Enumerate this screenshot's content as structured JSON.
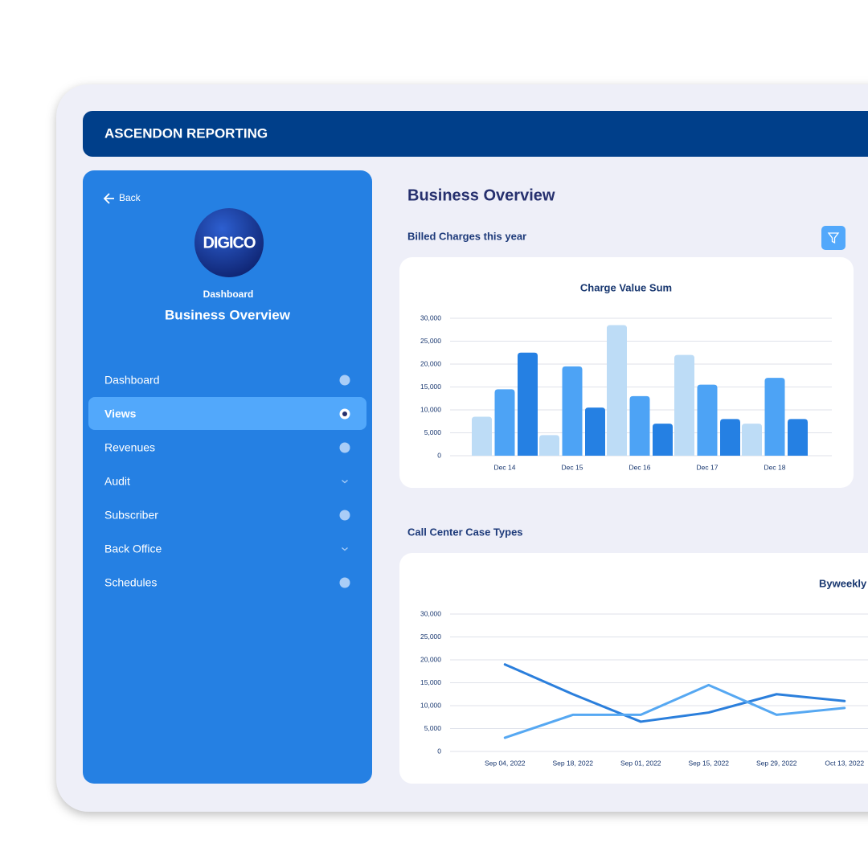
{
  "header": {
    "title": "ASCENDON REPORTING"
  },
  "sidebar": {
    "back": "Back",
    "logo": "DIGICO",
    "section": "Dashboard",
    "page": "Business Overview",
    "menu": [
      {
        "label": "Dashboard",
        "indicator": "dot"
      },
      {
        "label": "Views",
        "indicator": "radio",
        "active": true
      },
      {
        "label": "Revenues",
        "indicator": "dot"
      },
      {
        "label": "Audit",
        "indicator": "chevron"
      },
      {
        "label": "Subscriber",
        "indicator": "dot"
      },
      {
        "label": "Back Office",
        "indicator": "chevron"
      },
      {
        "label": "Schedules",
        "indicator": "dot"
      }
    ]
  },
  "content": {
    "title": "Business Overview",
    "sections": [
      "Billed Charges this year",
      "Call Center Case Types"
    ]
  },
  "chart_data": [
    {
      "type": "bar",
      "title": "Charge Value Sum",
      "categories": [
        "Dec 14",
        "Dec 15",
        "Dec 16",
        "Dec 17",
        "Dec 18"
      ],
      "series": [
        {
          "color": "#bddcf6",
          "values": [
            8500,
            4500,
            28500,
            22000,
            7000
          ]
        },
        {
          "color": "#4da3f5",
          "values": [
            14500,
            19500,
            13000,
            15500,
            17000
          ]
        },
        {
          "color": "#2580e3",
          "values": [
            22500,
            10500,
            7000,
            8000,
            8000
          ]
        }
      ],
      "ylim": [
        0,
        30000
      ],
      "yticks": [
        0,
        {
          "value": 5000,
          "label": "5,000"
        },
        {
          "value": 10000,
          "label": "10,000"
        },
        {
          "value": 15000,
          "label": "15,000"
        },
        {
          "value": 20000,
          "label": "20,000"
        },
        {
          "value": 25000,
          "label": "25,000"
        },
        {
          "value": 30000,
          "label": "30,000"
        }
      ],
      "grid": true
    },
    {
      "type": "line",
      "title": "Byweekly",
      "categories": [
        "Sep 04, 2022",
        "Sep 18, 2022",
        "Sep 01, 2022",
        "Sep 15, 2022",
        "Sep 29, 2022",
        "Oct 13, 2022"
      ],
      "series": [
        {
          "color": "#2b7fdc",
          "values": [
            19000,
            12500,
            6500,
            8500,
            12500,
            11000
          ]
        },
        {
          "color": "#56a8f2",
          "values": [
            3000,
            8000,
            8000,
            14500,
            8000,
            9500
          ]
        }
      ],
      "ylim": [
        0,
        30000
      ],
      "yticks": [
        0,
        {
          "value": 5000,
          "label": "5,000"
        },
        {
          "value": 10000,
          "label": "10,000"
        },
        {
          "value": 15000,
          "label": "15,000"
        },
        {
          "value": 20000,
          "label": "20,000"
        },
        {
          "value": 25000,
          "label": "25,000"
        },
        {
          "value": 30000,
          "label": "30,000"
        }
      ],
      "grid": true
    }
  ]
}
